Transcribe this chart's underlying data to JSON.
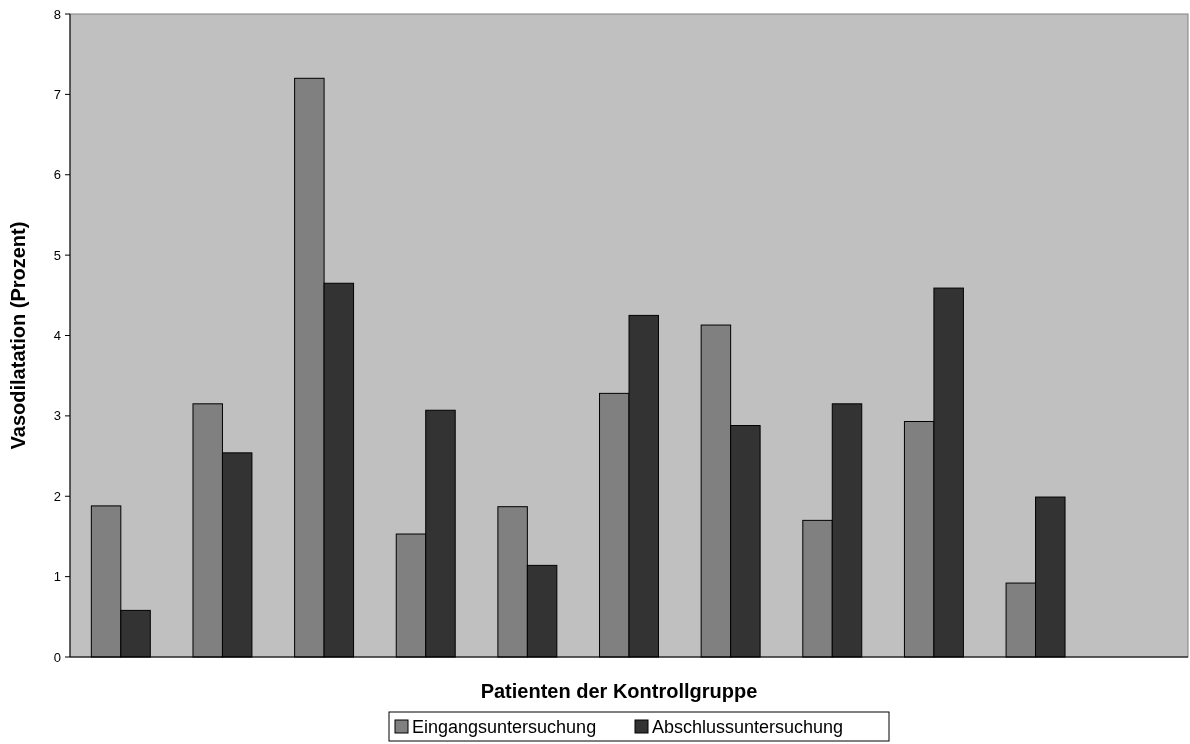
{
  "chart_data": {
    "type": "bar",
    "xlabel": "Patienten der Kontrollgruppe",
    "ylabel": "Vasodilatation (Prozent)",
    "categories": [
      null,
      null,
      null,
      null,
      null,
      null,
      null,
      null,
      null,
      null,
      null
    ],
    "series": [
      {
        "name": "Eingangsuntersuchung",
        "color": "#808080",
        "values": [
          1.88,
          3.15,
          7.2,
          1.53,
          1.87,
          3.28,
          4.13,
          1.7,
          2.93,
          0.92,
          null
        ]
      },
      {
        "name": "Abschlussuntersuchung",
        "color": "#333333",
        "values": [
          0.58,
          2.54,
          4.65,
          3.07,
          1.14,
          4.25,
          2.88,
          3.15,
          4.59,
          1.99,
          null
        ]
      }
    ],
    "ylim": [
      0,
      8
    ],
    "yticks": [
      0,
      1,
      2,
      3,
      4,
      5,
      6,
      7,
      8
    ],
    "grid": false,
    "legend": "bottom"
  }
}
